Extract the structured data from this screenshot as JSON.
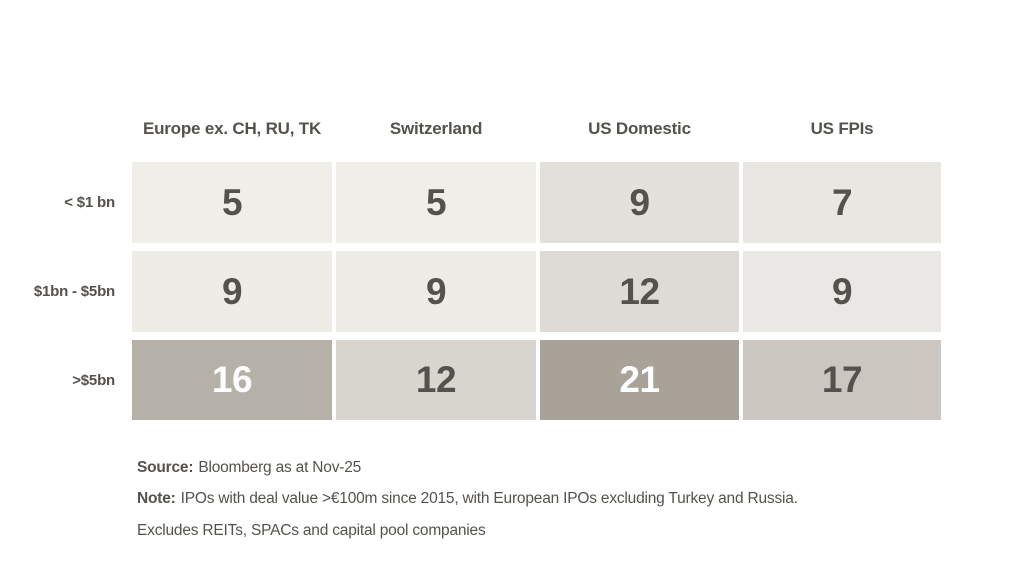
{
  "colors": {
    "background": "#ffffff",
    "text_dark": "#55524d",
    "text_light": "#ffffff"
  },
  "table": {
    "columns": [
      "Europe ex. CH, RU, TK",
      "Switzerland",
      "US Domestic",
      "US FPIs"
    ],
    "rows": [
      {
        "label": "< $1 bn",
        "cells": [
          {
            "value": "5",
            "bg": "#efeee9",
            "fg": "#55524d"
          },
          {
            "value": "5",
            "bg": "#efeee9",
            "fg": "#55524d"
          },
          {
            "value": "9",
            "bg": "#e3e1dc",
            "fg": "#55524d"
          },
          {
            "value": "7",
            "bg": "#e9e7e2",
            "fg": "#55524d"
          }
        ]
      },
      {
        "label": "$1bn - $5bn",
        "cells": [
          {
            "value": "9",
            "bg": "#edece7",
            "fg": "#55524d"
          },
          {
            "value": "9",
            "bg": "#edece7",
            "fg": "#55524d"
          },
          {
            "value": "12",
            "bg": "#dedad5",
            "fg": "#55524d"
          },
          {
            "value": "9",
            "bg": "#eae8e4",
            "fg": "#55524d"
          }
        ]
      },
      {
        "label": ">$5bn",
        "cells": [
          {
            "value": "16",
            "bg": "#b6b1a8",
            "fg": "#ffffff"
          },
          {
            "value": "12",
            "bg": "#d9d5cf",
            "fg": "#55524d"
          },
          {
            "value": "21",
            "bg": "#a8a298",
            "fg": "#ffffff"
          },
          {
            "value": "17",
            "bg": "#cbc7c0",
            "fg": "#55524d"
          }
        ]
      }
    ]
  },
  "footer": {
    "source_label": "Source:",
    "source_text": "Bloomberg as at Nov-25",
    "note_label": "Note:",
    "note_text": "IPOs with deal value >€100m since 2015, with European IPOs excluding Turkey and Russia.",
    "note_text2": "Excludes REITs, SPACs and capital pool companies"
  },
  "chart_data": {
    "type": "heatmap",
    "title": "",
    "columns": [
      "Europe ex. CH, RU, TK",
      "Switzerland",
      "US Domestic",
      "US FPIs"
    ],
    "row_categories": [
      "< $1 bn",
      "$1bn - $5bn",
      ">$5bn"
    ],
    "values": [
      [
        5,
        5,
        9,
        7
      ],
      [
        9,
        9,
        12,
        9
      ],
      [
        16,
        12,
        21,
        17
      ]
    ],
    "value_min": 5,
    "value_max": 21,
    "legend": "off",
    "grid": "off",
    "note": "darker cell shade = higher IPO count; white numerals on darkest cells (16, 21)"
  }
}
